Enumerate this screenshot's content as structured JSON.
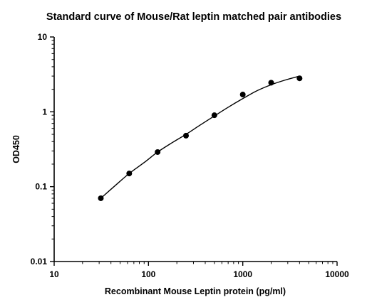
{
  "chart_data": {
    "type": "scatter",
    "title": "Standard curve of Mouse/Rat leptin matched pair antibodies",
    "xlabel": "Recombinant Mouse Leptin protein (pg/ml)",
    "ylabel": "OD450",
    "x_scale": "log",
    "y_scale": "log",
    "xlim": [
      10,
      10000
    ],
    "ylim": [
      0.01,
      10
    ],
    "x_ticks": [
      10,
      100,
      1000,
      10000
    ],
    "x_tick_labels": [
      "10",
      "100",
      "1000",
      "10000"
    ],
    "y_ticks": [
      0.01,
      0.1,
      1,
      10
    ],
    "y_tick_labels": [
      "0.01",
      "0.1",
      "1",
      "10"
    ],
    "grid": false,
    "series": [
      {
        "x": [
          31.25,
          62.5,
          125,
          250,
          500,
          1000,
          2000,
          4000
        ],
        "y": [
          0.07,
          0.15,
          0.29,
          0.48,
          0.9,
          1.7,
          2.45,
          2.8
        ]
      }
    ],
    "fit_curve": {
      "x": [
        31.25,
        45,
        62.5,
        90,
        125,
        180,
        250,
        350,
        500,
        700,
        1000,
        1400,
        2000,
        2800,
        4000
      ],
      "y": [
        0.07,
        0.105,
        0.15,
        0.21,
        0.29,
        0.39,
        0.5,
        0.66,
        0.88,
        1.15,
        1.5,
        1.9,
        2.3,
        2.65,
        3.0
      ]
    }
  }
}
